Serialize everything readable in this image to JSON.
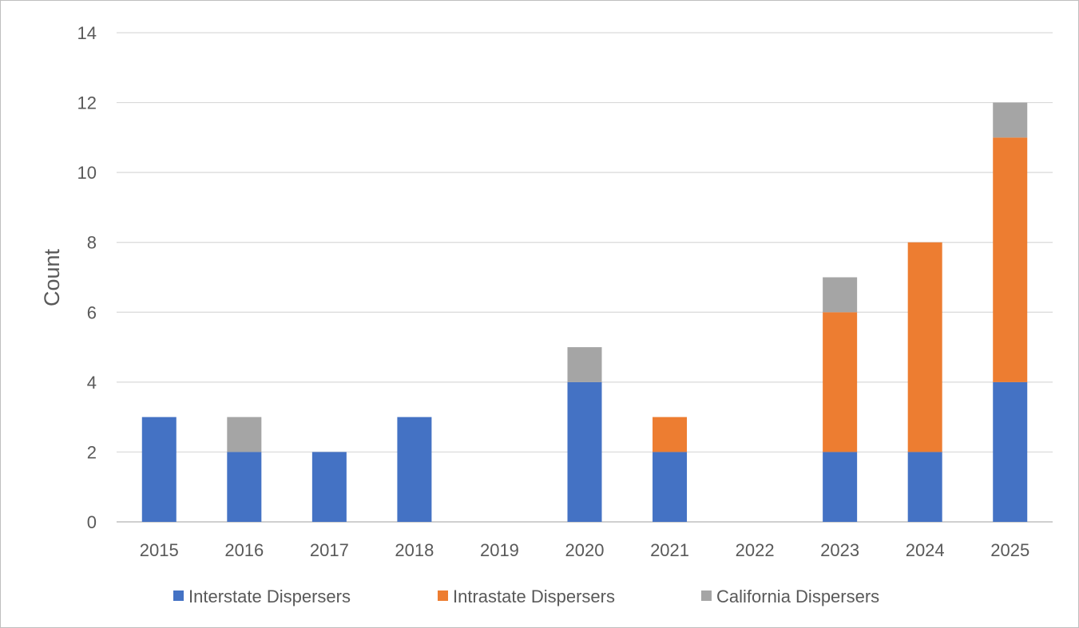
{
  "chart_data": {
    "type": "bar",
    "stacked": true,
    "title": "",
    "xlabel": "",
    "ylabel": "Count",
    "ylim": [
      0,
      14
    ],
    "yticks": [
      0,
      2,
      4,
      6,
      8,
      10,
      12,
      14
    ],
    "grid": true,
    "legend_position": "bottom",
    "categories": [
      "2015",
      "2016",
      "2017",
      "2018",
      "2019",
      "2020",
      "2021",
      "2022",
      "2023",
      "2024",
      "2025"
    ],
    "series": [
      {
        "name": "Interstate Dispersers",
        "color": "#4472c4",
        "values": [
          3,
          2,
          2,
          3,
          0,
          4,
          2,
          0,
          2,
          2,
          4
        ]
      },
      {
        "name": "Intrastate Dispersers",
        "color": "#ed7d31",
        "values": [
          0,
          0,
          0,
          0,
          0,
          0,
          1,
          0,
          4,
          6,
          7
        ]
      },
      {
        "name": "California Dispersers",
        "color": "#a5a5a5",
        "values": [
          0,
          1,
          0,
          0,
          0,
          1,
          0,
          0,
          1,
          0,
          1
        ]
      }
    ]
  }
}
